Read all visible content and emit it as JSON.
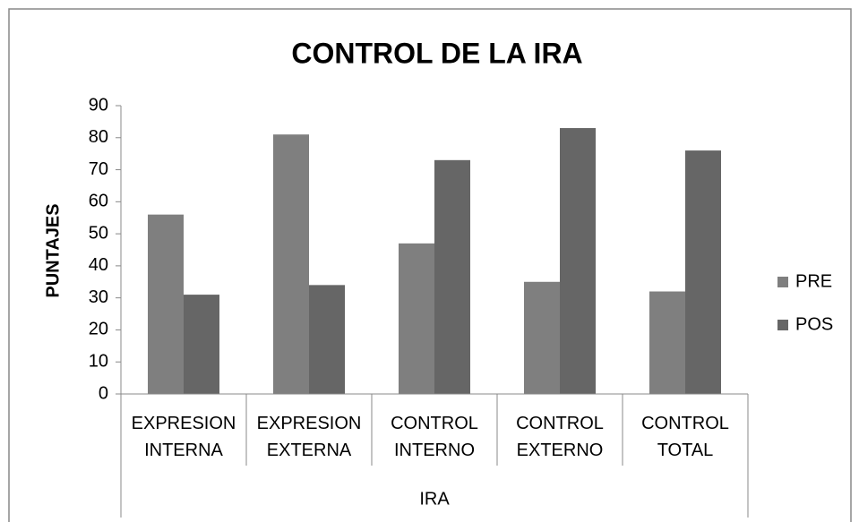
{
  "chart_data": {
    "type": "bar",
    "title": "CONTROL DE LA IRA",
    "y_label": "PUNTAJES",
    "x_label": "IRA",
    "categories": [
      "EXPRESION INTERNA",
      "EXPRESION EXTERNA",
      "CONTROL INTERNO",
      "CONTROL EXTERNO",
      "CONTROL TOTAL"
    ],
    "series": [
      {
        "name": "PRE",
        "color": "#7f7f7f",
        "values": [
          56,
          81,
          47,
          35,
          32
        ]
      },
      {
        "name": "POS",
        "color": "#666666",
        "values": [
          31,
          34,
          73,
          83,
          76
        ]
      }
    ],
    "ylim": [
      0,
      90
    ],
    "yticks": [
      0,
      10,
      20,
      30,
      40,
      50,
      60,
      70,
      80,
      90
    ],
    "grid": false,
    "legend": "right"
  }
}
